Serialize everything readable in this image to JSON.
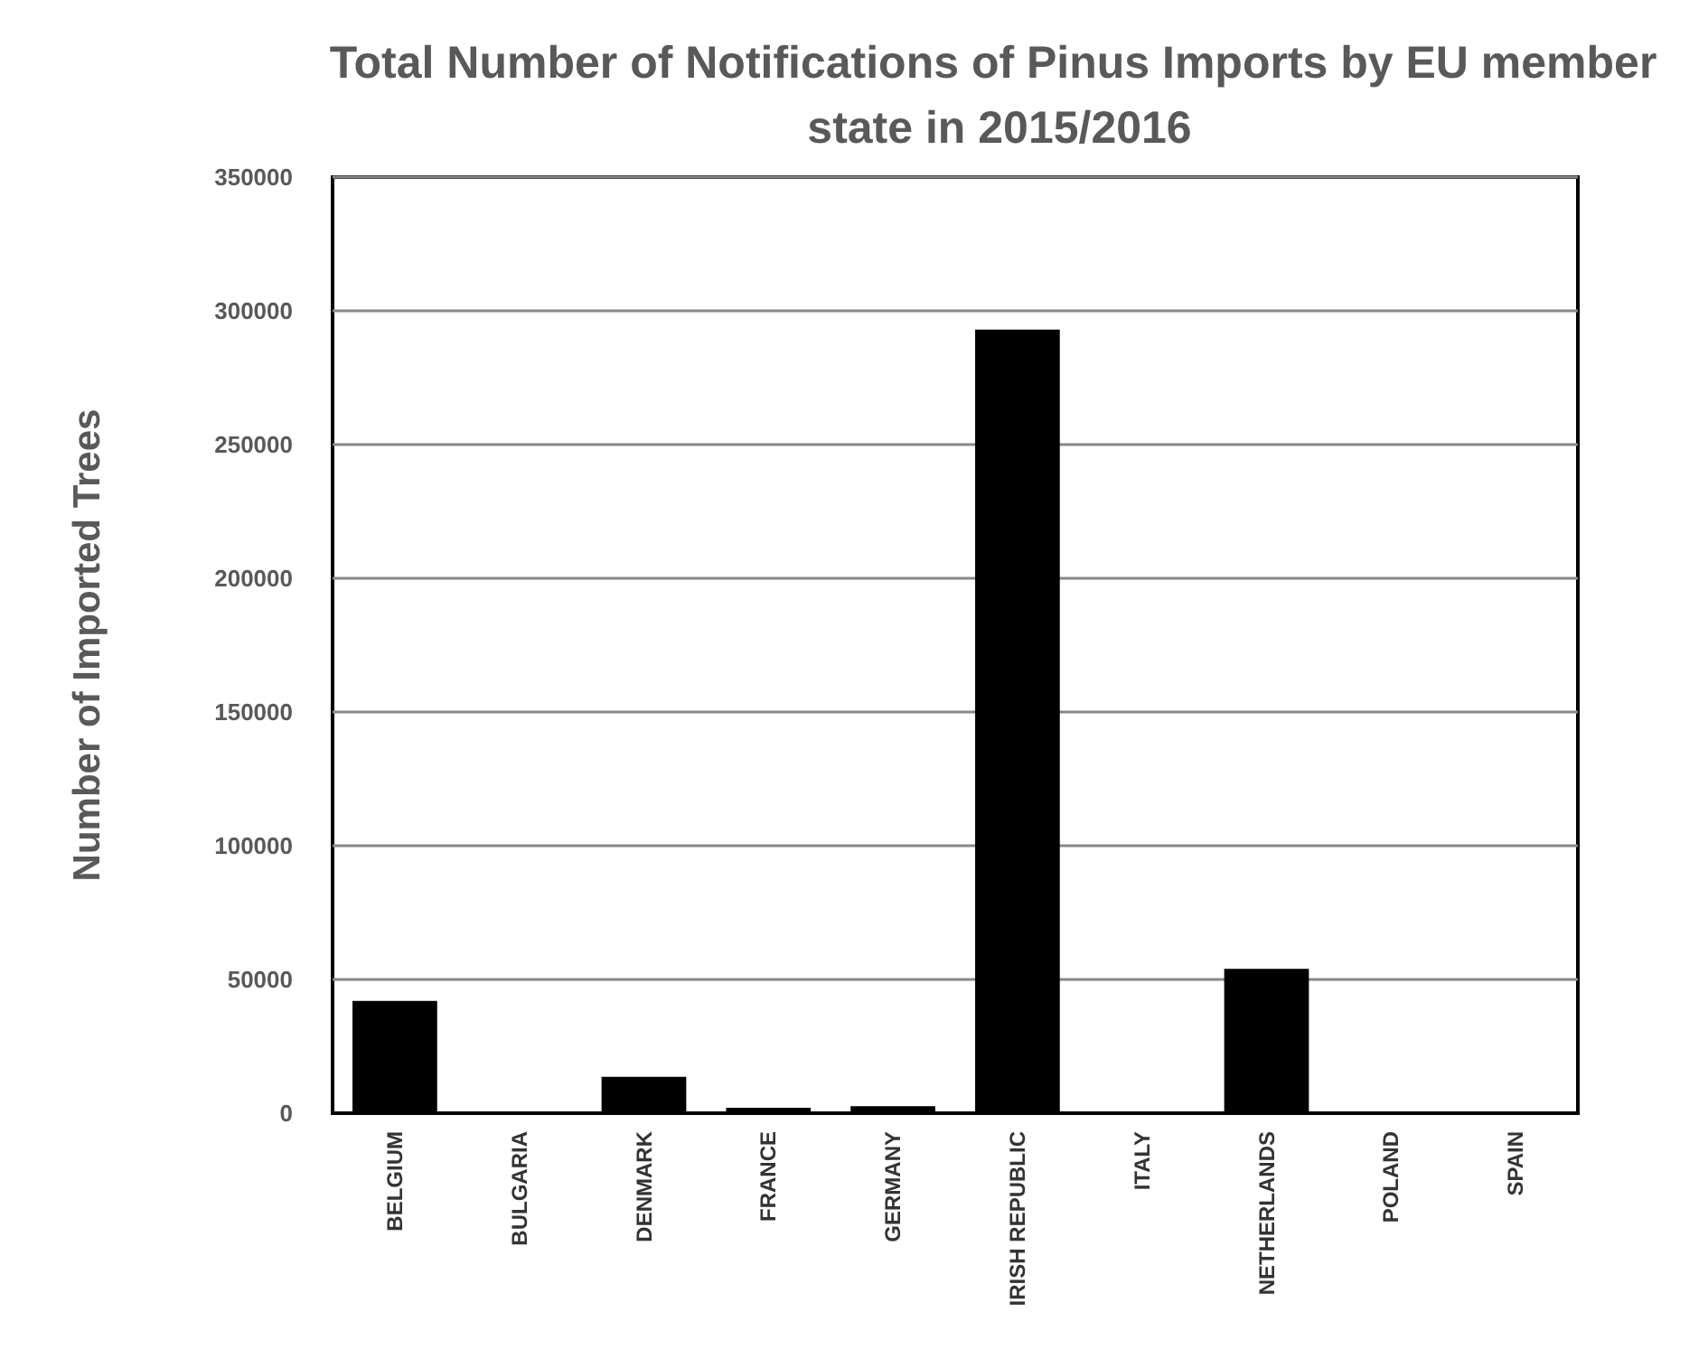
{
  "chart_data": {
    "type": "bar",
    "title": "Total Number of Notifications of Pinus Imports by EU member state in 2015/2016",
    "ylabel": "Number of Imported Trees",
    "categories": [
      "BELGIUM",
      "BULGARIA",
      "DENMARK",
      "FRANCE",
      "GERMANY",
      "IRISH REPUBLIC",
      "ITALY",
      "NETHERLANDS",
      "POLAND",
      "SPAIN"
    ],
    "values": [
      42000,
      0,
      13600,
      2000,
      2600,
      293000,
      0,
      54000,
      0,
      0
    ],
    "color": "#000000",
    "ylim": [
      0,
      350000
    ],
    "yticks": [
      0,
      50000,
      100000,
      150000,
      200000,
      250000,
      300000,
      350000
    ],
    "grid": "y"
  }
}
